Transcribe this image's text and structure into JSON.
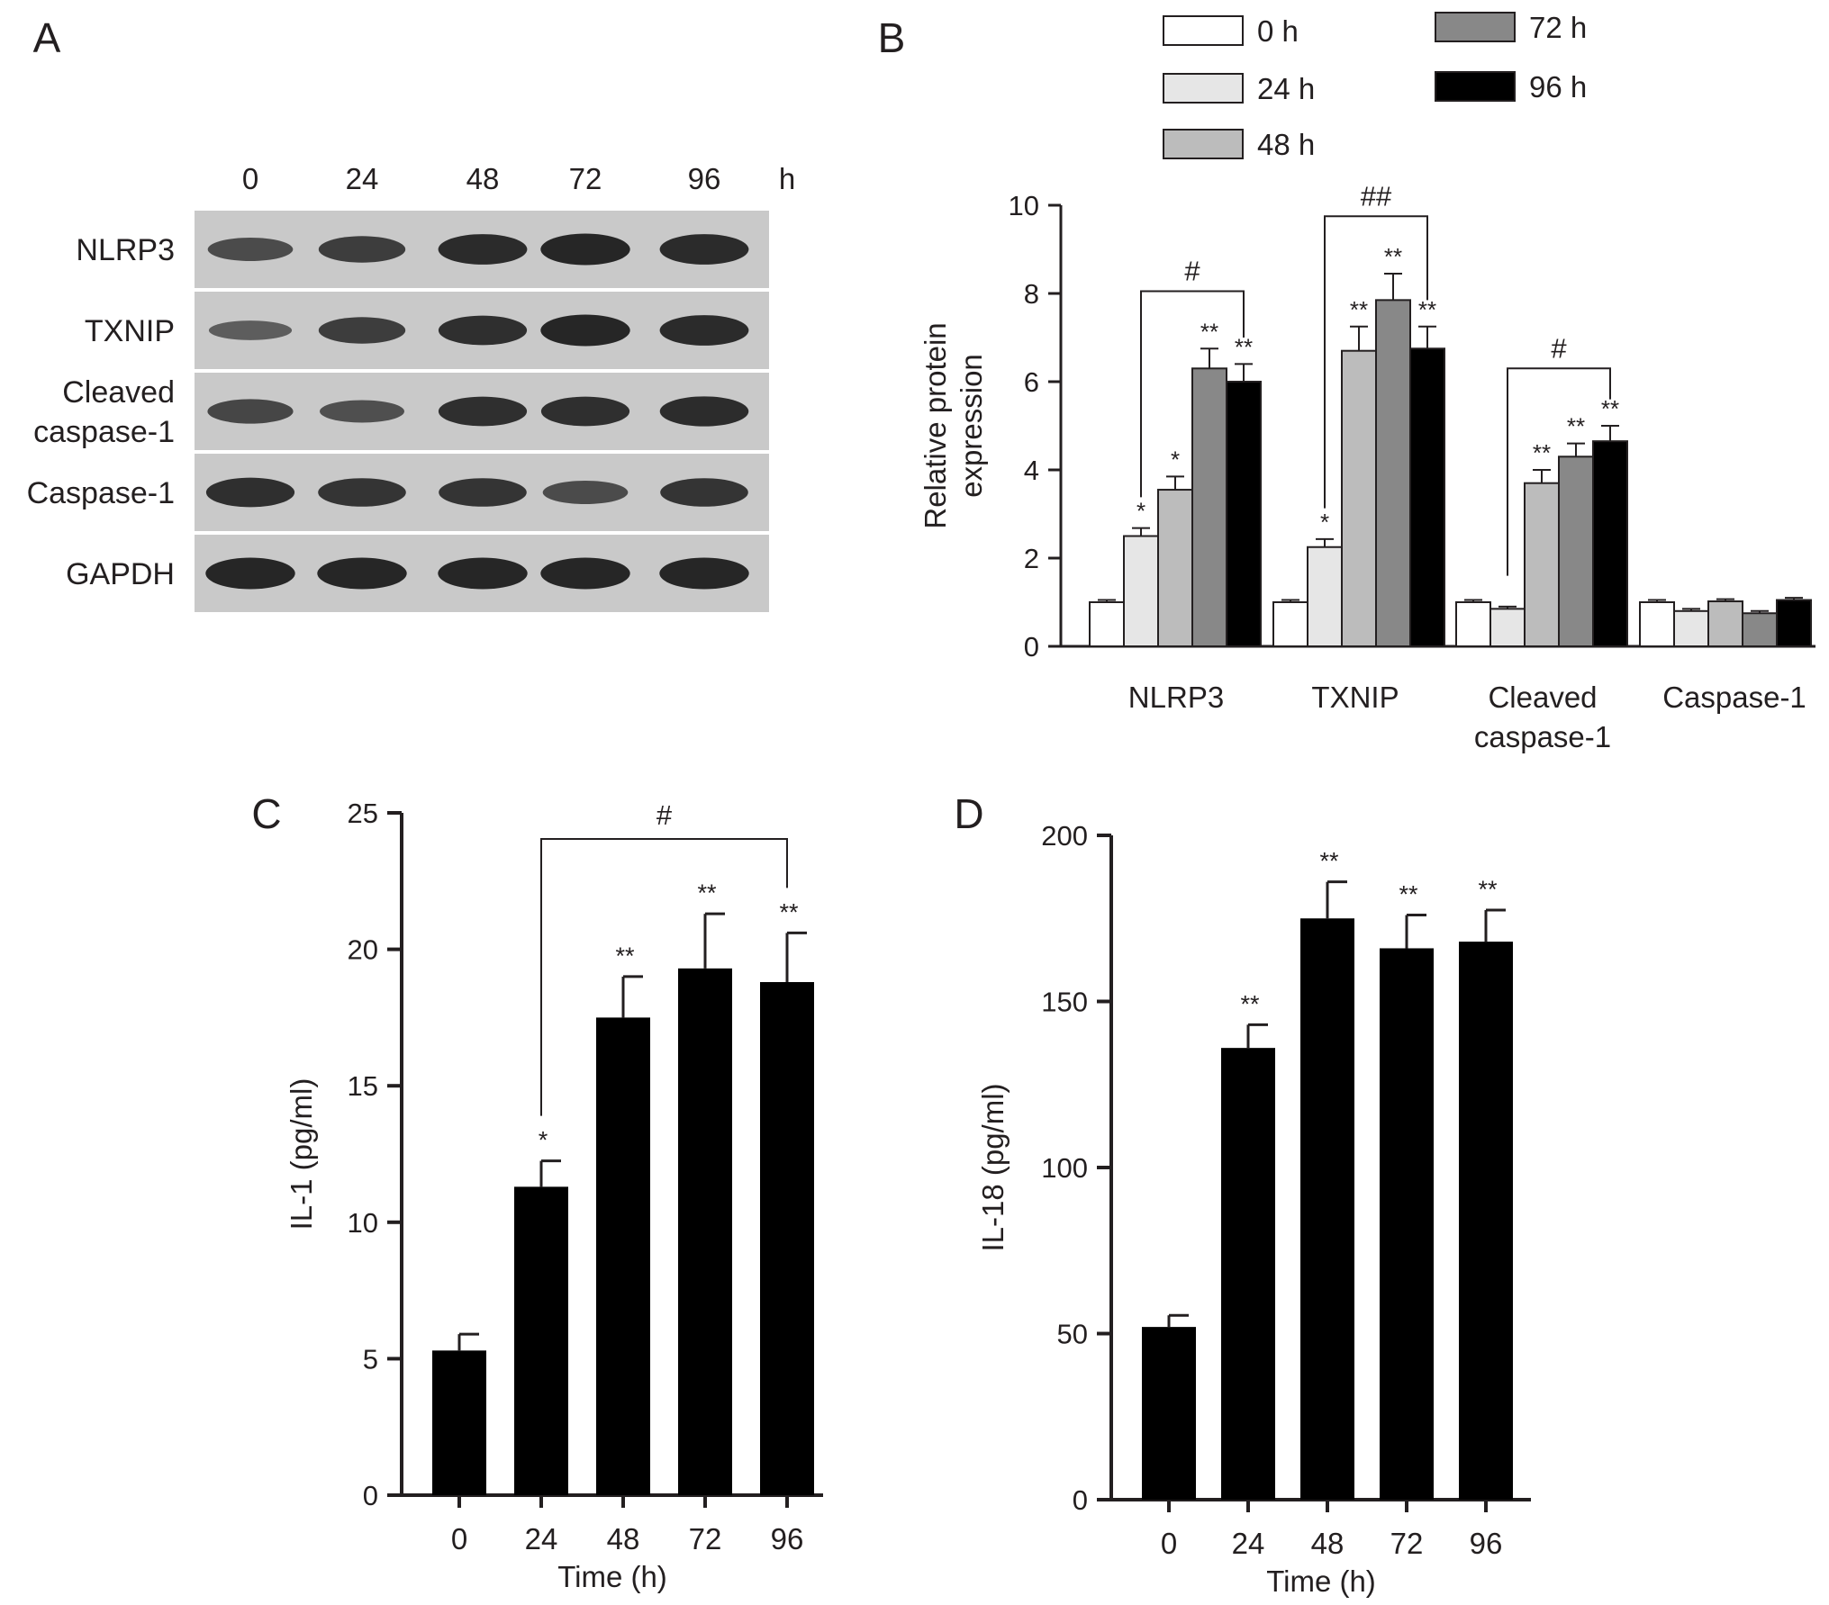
{
  "panel_letters": [
    "A",
    "B",
    "C",
    "D"
  ],
  "blot": {
    "time_labels": [
      "0",
      "24",
      "48",
      "72",
      "96"
    ],
    "unit": "h",
    "rows": [
      {
        "label": [
          "NLRP3"
        ],
        "intensity": [
          0.55,
          0.7,
          0.9,
          0.95,
          0.9
        ]
      },
      {
        "label": [
          "TXNIP"
        ],
        "intensity": [
          0.35,
          0.7,
          0.85,
          0.95,
          0.9
        ]
      },
      {
        "label": [
          "Cleaved",
          "caspase-1"
        ],
        "intensity": [
          0.6,
          0.5,
          0.85,
          0.85,
          0.88
        ]
      },
      {
        "label": [
          "Caspase-1"
        ],
        "intensity": [
          0.85,
          0.8,
          0.8,
          0.55,
          0.8
        ]
      },
      {
        "label": [
          "GAPDH"
        ],
        "intensity": [
          0.95,
          0.95,
          0.95,
          0.95,
          0.95
        ]
      }
    ]
  },
  "chart_data": [
    {
      "panel": "B",
      "type": "bar",
      "ylabel": [
        "Relative protein",
        "expression"
      ],
      "ylim": [
        0,
        10
      ],
      "yticks": [
        0,
        2,
        4,
        6,
        8,
        10
      ],
      "categories": [
        [
          "NLRP3"
        ],
        [
          "TXNIP"
        ],
        [
          "Cleaved",
          "caspase-1"
        ],
        [
          "Caspase-1"
        ]
      ],
      "series": [
        {
          "name": "0 h",
          "color": "#ffffff",
          "values": [
            1.0,
            1.0,
            1.0,
            1.0
          ],
          "errors": [
            0.05,
            0.05,
            0.05,
            0.05
          ]
        },
        {
          "name": "24 h",
          "color": "#e6e6e6",
          "values": [
            2.5,
            2.25,
            0.85,
            0.8
          ],
          "errors": [
            0.18,
            0.18,
            0.05,
            0.05
          ]
        },
        {
          "name": "48 h",
          "color": "#bcbcbc",
          "values": [
            3.55,
            6.7,
            3.7,
            1.02
          ],
          "errors": [
            0.3,
            0.55,
            0.3,
            0.05
          ]
        },
        {
          "name": "72 h",
          "color": "#888888",
          "values": [
            6.3,
            7.85,
            4.3,
            0.75
          ],
          "errors": [
            0.45,
            0.6,
            0.3,
            0.05
          ]
        },
        {
          "name": "96 h",
          "color": "#000000",
          "values": [
            6.0,
            6.75,
            4.65,
            1.05
          ],
          "errors": [
            0.4,
            0.5,
            0.35,
            0.05
          ]
        }
      ],
      "annotations": [
        [
          "",
          "*",
          "*",
          "**",
          "**"
        ],
        [
          "",
          "*",
          "**",
          "**",
          "**"
        ],
        [
          "",
          "",
          "**",
          "**",
          "**"
        ],
        [
          "",
          "",
          "",
          "",
          ""
        ]
      ],
      "brackets": [
        {
          "category": 0,
          "from": 1,
          "to": 4,
          "label": "#"
        },
        {
          "category": 1,
          "from": 1,
          "to": 4,
          "label": "##"
        },
        {
          "category": 2,
          "from": 1,
          "to": 4,
          "label": "#"
        }
      ],
      "legend_position": "top"
    },
    {
      "panel": "C",
      "type": "bar",
      "xlabel": "Time (h)",
      "ylabel": "IL-1 (pg/ml)",
      "ylim": [
        0,
        25
      ],
      "yticks": [
        0,
        5,
        10,
        15,
        20,
        25
      ],
      "categories": [
        "0",
        "24",
        "48",
        "72",
        "96"
      ],
      "values": [
        5.3,
        11.3,
        17.5,
        19.3,
        18.8
      ],
      "errors": [
        0.6,
        0.95,
        1.5,
        2.0,
        1.8
      ],
      "annotations": [
        "",
        "*",
        "**",
        "**",
        "**"
      ],
      "brackets": [
        {
          "from": 1,
          "to": 4,
          "label": "#"
        }
      ]
    },
    {
      "panel": "D",
      "type": "bar",
      "xlabel": "Time (h)",
      "ylabel": "IL-18 (pg/ml)",
      "ylim": [
        0,
        200
      ],
      "yticks": [
        0,
        50,
        100,
        150,
        200
      ],
      "categories": [
        "0",
        "24",
        "48",
        "72",
        "96"
      ],
      "values": [
        52,
        136,
        175,
        166,
        168
      ],
      "errors": [
        3.5,
        7,
        11,
        10,
        9.5
      ],
      "annotations": [
        "",
        "**",
        "**",
        "**",
        "**"
      ],
      "brackets": []
    }
  ]
}
